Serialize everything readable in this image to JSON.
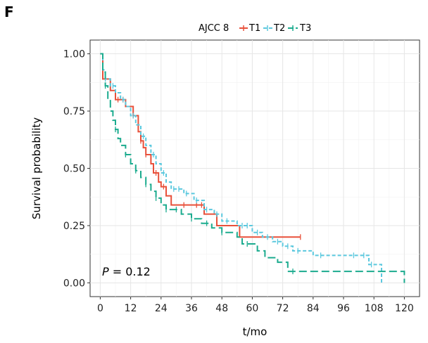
{
  "panel_label": "F",
  "p_value": {
    "italic": "P",
    "rest": " = 0.12"
  },
  "chart_data": {
    "type": "line",
    "subtype": "kaplan-meier-step",
    "legend_title": "AJCC 8",
    "legend_position": "top",
    "xlabel": "t/mo",
    "ylabel": "Survival probability",
    "xlim": [
      -4,
      126
    ],
    "ylim": [
      -0.06,
      1.06
    ],
    "x_ticks": [
      0,
      12,
      24,
      36,
      48,
      60,
      72,
      84,
      96,
      108,
      120
    ],
    "x_tick_labels": [
      "0",
      "12",
      "24",
      "36",
      "48",
      "60",
      "72",
      "84",
      "96",
      "108",
      "120"
    ],
    "y_ticks": [
      0,
      0.25,
      0.5,
      0.75,
      1
    ],
    "y_tick_labels": [
      "0.00",
      "0.25",
      "0.50",
      "0.75",
      "1.00"
    ],
    "grid": true,
    "series": [
      {
        "name": "T1",
        "color": "#e8503a",
        "dash": "solid",
        "points": [
          [
            0,
            1
          ],
          [
            1,
            0.89
          ],
          [
            4,
            0.84
          ],
          [
            6,
            0.8
          ],
          [
            10,
            0.77
          ],
          [
            13,
            0.73
          ],
          [
            15,
            0.66
          ],
          [
            16,
            0.62
          ],
          [
            17,
            0.59
          ],
          [
            18,
            0.56
          ],
          [
            20,
            0.52
          ],
          [
            21,
            0.48
          ],
          [
            23,
            0.44
          ],
          [
            24,
            0.42
          ],
          [
            26,
            0.38
          ],
          [
            28,
            0.34
          ],
          [
            40,
            0.34
          ],
          [
            41,
            0.3
          ],
          [
            46,
            0.25
          ],
          [
            55,
            0.2
          ],
          [
            79,
            0.2
          ]
        ],
        "censor_x": [
          7,
          9,
          13,
          16,
          18,
          22,
          25,
          33,
          38,
          40,
          79
        ]
      },
      {
        "name": "T2",
        "color": "#5bc8de",
        "dash": "5,3",
        "points": [
          [
            0,
            1
          ],
          [
            1,
            0.93
          ],
          [
            2,
            0.89
          ],
          [
            4,
            0.86
          ],
          [
            6,
            0.83
          ],
          [
            8,
            0.8
          ],
          [
            10,
            0.77
          ],
          [
            12,
            0.73
          ],
          [
            14,
            0.69
          ],
          [
            16,
            0.64
          ],
          [
            18,
            0.6
          ],
          [
            20,
            0.56
          ],
          [
            22,
            0.52
          ],
          [
            24,
            0.48
          ],
          [
            26,
            0.44
          ],
          [
            28,
            0.41
          ],
          [
            33,
            0.39
          ],
          [
            37,
            0.36
          ],
          [
            41,
            0.32
          ],
          [
            45,
            0.3
          ],
          [
            48,
            0.27
          ],
          [
            54,
            0.25
          ],
          [
            60,
            0.22
          ],
          [
            64,
            0.2
          ],
          [
            68,
            0.18
          ],
          [
            72,
            0.16
          ],
          [
            76,
            0.14
          ],
          [
            84,
            0.12
          ],
          [
            105,
            0.12
          ],
          [
            106,
            0.08
          ],
          [
            111,
            0.04
          ],
          [
            111,
            0
          ]
        ],
        "censor_x": [
          2,
          5,
          9,
          13,
          17,
          21,
          25,
          29,
          31,
          34,
          38,
          42,
          46,
          50,
          56,
          58,
          62,
          66,
          70,
          74,
          78,
          87,
          100,
          104,
          107
        ]
      },
      {
        "name": "T3",
        "color": "#1bab8e",
        "dash": "11,5",
        "points": [
          [
            0,
            1
          ],
          [
            1,
            0.92
          ],
          [
            2,
            0.86
          ],
          [
            3,
            0.8
          ],
          [
            4,
            0.75
          ],
          [
            5,
            0.71
          ],
          [
            6,
            0.67
          ],
          [
            7,
            0.63
          ],
          [
            8,
            0.6
          ],
          [
            10,
            0.56
          ],
          [
            12,
            0.52
          ],
          [
            14,
            0.49
          ],
          [
            16,
            0.46
          ],
          [
            18,
            0.43
          ],
          [
            20,
            0.4
          ],
          [
            22,
            0.37
          ],
          [
            24,
            0.34
          ],
          [
            26,
            0.32
          ],
          [
            32,
            0.3
          ],
          [
            36,
            0.28
          ],
          [
            40,
            0.26
          ],
          [
            44,
            0.24
          ],
          [
            48,
            0.22
          ],
          [
            54,
            0.2
          ],
          [
            56,
            0.17
          ],
          [
            62,
            0.14
          ],
          [
            65,
            0.11
          ],
          [
            70,
            0.09
          ],
          [
            74,
            0.05
          ],
          [
            120,
            0.05
          ],
          [
            120,
            0
          ]
        ],
        "censor_x": [
          2,
          6,
          10,
          14,
          18,
          22,
          26,
          30,
          36,
          42,
          48,
          58,
          76
        ]
      }
    ]
  }
}
